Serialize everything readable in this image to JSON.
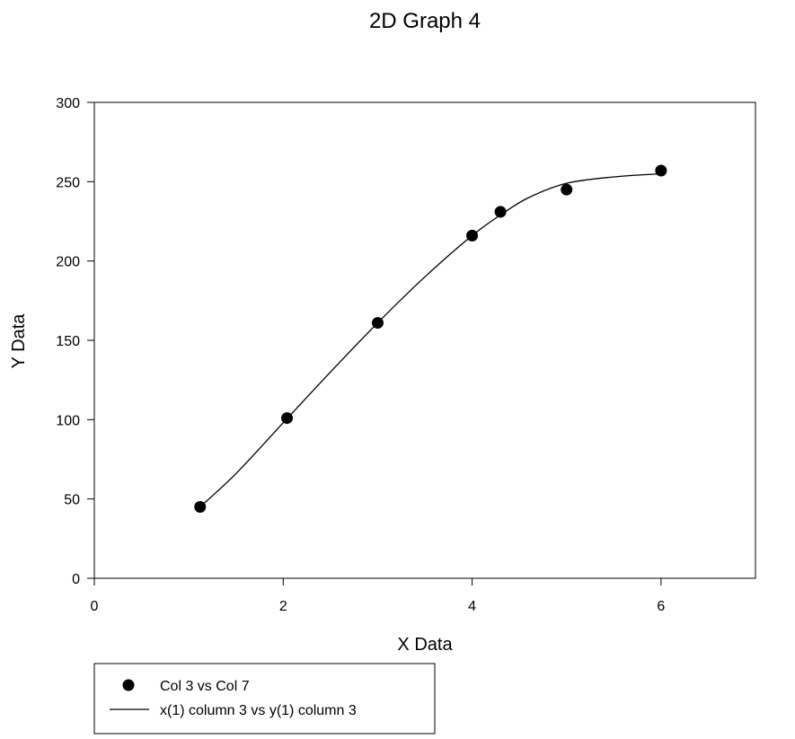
{
  "chart_data": {
    "type": "scatter",
    "title": "2D Graph 4",
    "xlabel": "X Data",
    "ylabel": "Y Data",
    "xlim": [
      0,
      7
    ],
    "ylim": [
      0,
      300
    ],
    "x_ticks": [
      "0",
      "2",
      "4",
      "6"
    ],
    "y_ticks": [
      "0",
      "50",
      "100",
      "150",
      "200",
      "250",
      "300"
    ],
    "grid": false,
    "legend_position": "bottom-left",
    "series": [
      {
        "name": "Col 3 vs Col 7",
        "kind": "markers",
        "color": "#000000",
        "points": [
          {
            "x": 1.12,
            "y": 45
          },
          {
            "x": 2.04,
            "y": 101
          },
          {
            "x": 3.0,
            "y": 161
          },
          {
            "x": 4.0,
            "y": 216
          },
          {
            "x": 4.3,
            "y": 231
          },
          {
            "x": 5.0,
            "y": 245
          },
          {
            "x": 6.0,
            "y": 257
          }
        ]
      },
      {
        "name": "x(1) column 3 vs y(1) column 3",
        "kind": "line",
        "color": "#000000",
        "points": [
          {
            "x": 1.12,
            "y": 45
          },
          {
            "x": 1.5,
            "y": 66
          },
          {
            "x": 2.0,
            "y": 98
          },
          {
            "x": 2.5,
            "y": 130
          },
          {
            "x": 3.0,
            "y": 161
          },
          {
            "x": 3.5,
            "y": 190
          },
          {
            "x": 4.0,
            "y": 216
          },
          {
            "x": 4.3,
            "y": 229
          },
          {
            "x": 4.6,
            "y": 240
          },
          {
            "x": 5.0,
            "y": 249
          },
          {
            "x": 5.5,
            "y": 253
          },
          {
            "x": 6.0,
            "y": 255
          }
        ]
      }
    ]
  }
}
